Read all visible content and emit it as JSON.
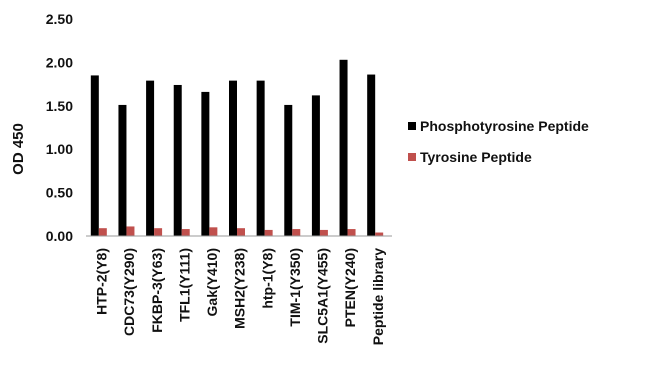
{
  "chart_data": {
    "type": "bar",
    "ylabel": "OD 450",
    "ylim": [
      0,
      2.5
    ],
    "yticks": [
      "0.00",
      "0.50",
      "1.00",
      "1.50",
      "2.00",
      "2.50"
    ],
    "grid": false,
    "legend_position": "right",
    "categories": [
      "HTP-2(Y8)",
      "CDC73(Y290)",
      "FKBP-3(Y63)",
      "TFL1(Y111)",
      "Gak(Y410)",
      "MSH2(Y238)",
      "htp-1(Y8)",
      "TIM-1(Y350)",
      "SLC5A1(Y455)",
      "PTEN(Y240)",
      "Peptide library"
    ],
    "series": [
      {
        "name": "Phosphotyrosine Peptide",
        "color": "#000000",
        "values": [
          1.85,
          1.51,
          1.79,
          1.74,
          1.66,
          1.79,
          1.79,
          1.51,
          1.62,
          2.03,
          1.86
        ]
      },
      {
        "name": "Tyrosine Peptide",
        "color": "#c0504d",
        "values": [
          0.09,
          0.11,
          0.09,
          0.08,
          0.1,
          0.09,
          0.07,
          0.08,
          0.07,
          0.08,
          0.04
        ]
      }
    ]
  }
}
